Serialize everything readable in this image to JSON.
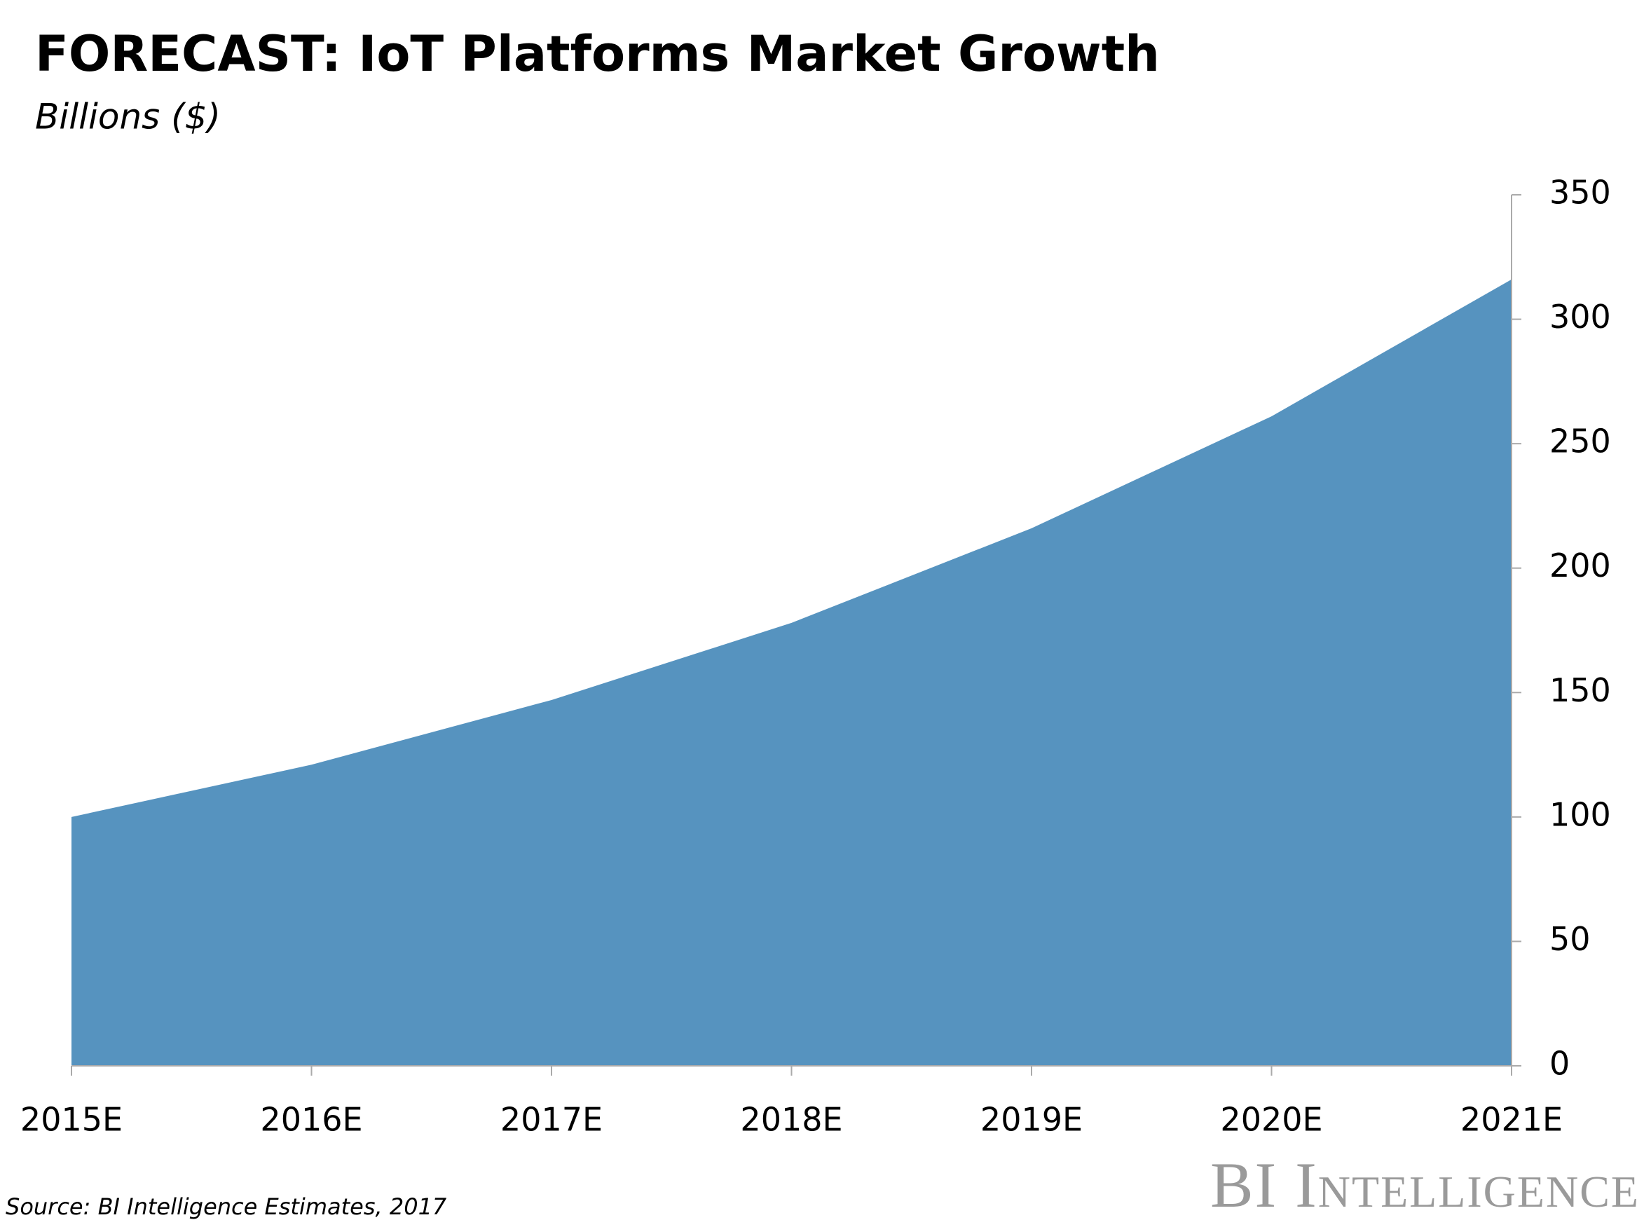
{
  "chart_data": {
    "type": "area",
    "title": "FORECAST: IoT Platforms Market Growth",
    "subtitle": "Billions ($)",
    "categories": [
      "2015E",
      "2016E",
      "2017E",
      "2018E",
      "2019E",
      "2020E",
      "2021E"
    ],
    "values": [
      100,
      121,
      147,
      178,
      216,
      261,
      316
    ],
    "color": "#5693bf",
    "ylim": [
      0,
      350
    ],
    "yticks": [
      0,
      50,
      100,
      150,
      200,
      250,
      300,
      350
    ],
    "grid": false,
    "source": "Source: BI Intelligence Estimates, 2017",
    "logo": "BI Intelligence"
  }
}
